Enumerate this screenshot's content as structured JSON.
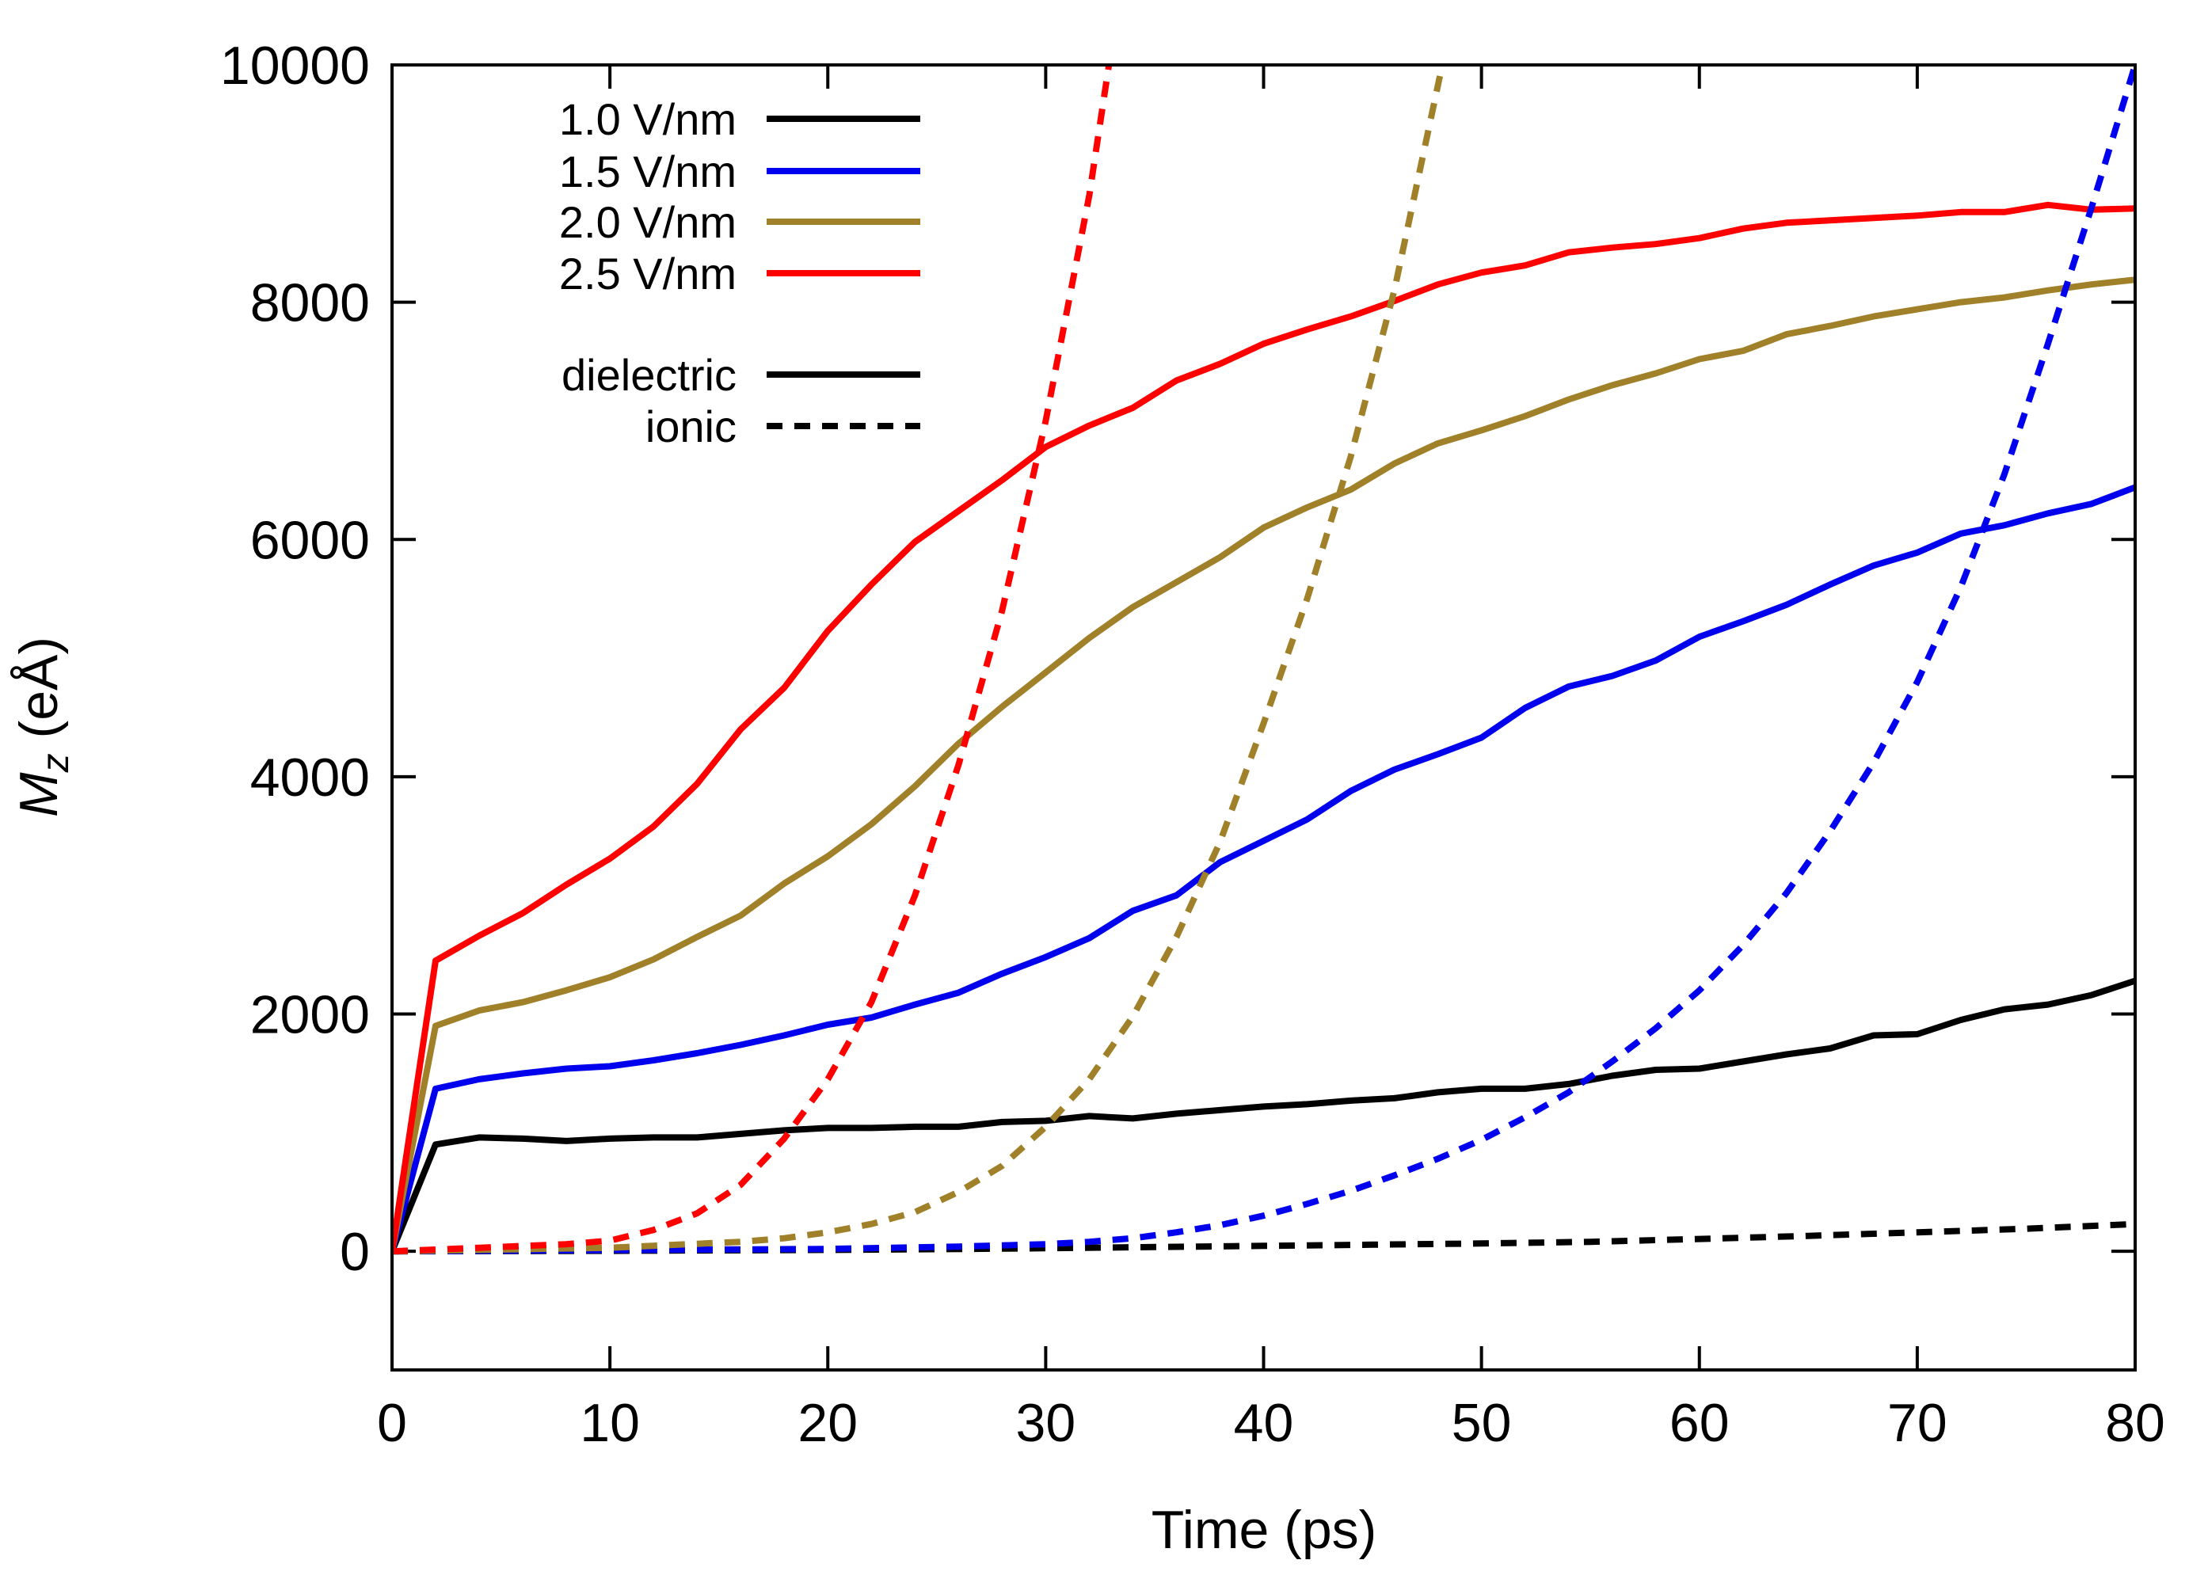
{
  "chart_data": {
    "type": "line",
    "xlabel": "Time (ps)",
    "ylabel": {
      "main": "M",
      "sub": "z",
      "unit": " (eÅ)"
    },
    "xlim": [
      0,
      80
    ],
    "ylim": [
      -1000,
      10000
    ],
    "xticks": [
      0,
      10,
      20,
      30,
      40,
      50,
      60,
      70,
      80
    ],
    "yticks": [
      0,
      2000,
      4000,
      6000,
      8000,
      10000
    ],
    "legend_position": "top-left",
    "legend": {
      "fields": [
        "1.0 V/nm",
        "1.5 V/nm",
        "2.0 V/nm",
        "2.5 V/nm"
      ],
      "styles": [
        "dielectric",
        "ionic"
      ]
    },
    "series": [
      {
        "name": "1.0 V/nm dielectric",
        "field": "1.0 V/nm",
        "kind": "dielectric",
        "color": "#000000",
        "x": [
          0,
          2,
          4,
          6,
          8,
          10,
          12,
          14,
          16,
          18,
          20,
          22,
          24,
          26,
          28,
          30,
          32,
          34,
          36,
          38,
          40,
          42,
          44,
          46,
          48,
          50,
          52,
          54,
          56,
          58,
          60,
          62,
          64,
          66,
          68,
          70,
          72,
          74,
          76,
          78,
          80
        ],
        "y": [
          0,
          900,
          960,
          950,
          930,
          950,
          960,
          960,
          990,
          1020,
          1040,
          1040,
          1050,
          1050,
          1090,
          1100,
          1140,
          1120,
          1160,
          1190,
          1220,
          1240,
          1270,
          1290,
          1340,
          1370,
          1370,
          1410,
          1480,
          1530,
          1540,
          1600,
          1660,
          1710,
          1820,
          1830,
          1950,
          2040,
          2080,
          2160,
          2280
        ]
      },
      {
        "name": "1.5 V/nm dielectric",
        "field": "1.5 V/nm",
        "kind": "dielectric",
        "color": "#0000ee",
        "x": [
          0,
          2,
          4,
          6,
          8,
          10,
          12,
          14,
          16,
          18,
          20,
          22,
          24,
          26,
          28,
          30,
          32,
          34,
          36,
          38,
          40,
          42,
          44,
          46,
          48,
          50,
          52,
          54,
          56,
          58,
          60,
          62,
          64,
          66,
          68,
          70,
          72,
          74,
          76,
          78,
          80
        ],
        "y": [
          0,
          1370,
          1450,
          1500,
          1540,
          1560,
          1610,
          1670,
          1740,
          1820,
          1910,
          1970,
          2080,
          2180,
          2340,
          2480,
          2640,
          2870,
          3000,
          3280,
          3460,
          3640,
          3880,
          4060,
          4190,
          4330,
          4580,
          4760,
          4850,
          4980,
          5180,
          5310,
          5450,
          5620,
          5780,
          5890,
          6050,
          6120,
          6220,
          6300,
          6440
        ]
      },
      {
        "name": "2.0 V/nm dielectric",
        "field": "2.0 V/nm",
        "kind": "dielectric",
        "color": "#a08028",
        "x": [
          0,
          2,
          4,
          6,
          8,
          10,
          12,
          14,
          16,
          18,
          20,
          22,
          24,
          26,
          28,
          30,
          32,
          34,
          36,
          38,
          40,
          42,
          44,
          46,
          48,
          50,
          52,
          54,
          56,
          58,
          60,
          62,
          64,
          66,
          68,
          70,
          72,
          74,
          76,
          78,
          80
        ],
        "y": [
          0,
          1900,
          2030,
          2100,
          2200,
          2310,
          2460,
          2650,
          2830,
          3100,
          3330,
          3600,
          3920,
          4280,
          4590,
          4880,
          5170,
          5430,
          5640,
          5850,
          6100,
          6270,
          6420,
          6640,
          6810,
          6920,
          7040,
          7180,
          7300,
          7400,
          7520,
          7590,
          7730,
          7800,
          7880,
          7940,
          8000,
          8040,
          8100,
          8150,
          8190
        ]
      },
      {
        "name": "2.5 V/nm dielectric",
        "field": "2.5 V/nm",
        "kind": "dielectric",
        "color": "#ff0000",
        "x": [
          0,
          2,
          4,
          6,
          8,
          10,
          12,
          14,
          16,
          18,
          20,
          22,
          24,
          26,
          28,
          30,
          32,
          34,
          36,
          38,
          40,
          42,
          44,
          46,
          48,
          50,
          52,
          54,
          56,
          58,
          60,
          62,
          64,
          66,
          68,
          70,
          72,
          74,
          76,
          78,
          80
        ],
        "y": [
          0,
          2450,
          2660,
          2850,
          3090,
          3310,
          3580,
          3940,
          4400,
          4750,
          5230,
          5620,
          5980,
          6240,
          6500,
          6780,
          6960,
          7110,
          7340,
          7480,
          7650,
          7770,
          7880,
          8010,
          8150,
          8250,
          8310,
          8420,
          8460,
          8490,
          8540,
          8620,
          8670,
          8690,
          8710,
          8730,
          8760,
          8760,
          8820,
          8780,
          8790
        ]
      },
      {
        "name": "1.0 V/nm ionic",
        "field": "1.0 V/nm",
        "kind": "ionic",
        "color": "#000000",
        "x": [
          0,
          5,
          10,
          15,
          20,
          25,
          30,
          35,
          40,
          45,
          50,
          55,
          60,
          65,
          70,
          75,
          80
        ],
        "y": [
          0,
          2,
          4,
          8,
          12,
          18,
          26,
          36,
          46,
          56,
          66,
          80,
          104,
          130,
          160,
          190,
          230
        ]
      },
      {
        "name": "1.5 V/nm ionic",
        "field": "1.5 V/nm",
        "kind": "ionic",
        "color": "#0000ee",
        "x": [
          0,
          10,
          20,
          26,
          30,
          32,
          34,
          36,
          38,
          40,
          42,
          44,
          46,
          48,
          50,
          52,
          54,
          56,
          58,
          60,
          62,
          64,
          66,
          68,
          70,
          72,
          74,
          76,
          78,
          80
        ],
        "y": [
          0,
          10,
          20,
          40,
          60,
          80,
          110,
          160,
          220,
          300,
          400,
          510,
          640,
          780,
          940,
          1130,
          1340,
          1600,
          1880,
          2200,
          2580,
          3020,
          3540,
          4120,
          4800,
          5600,
          6550,
          7650,
          8800,
          10000
        ]
      },
      {
        "name": "2.0 V/nm ionic",
        "field": "2.0 V/nm",
        "kind": "ionic",
        "color": "#a08028",
        "x": [
          0,
          10,
          16,
          18,
          20,
          22,
          24,
          26,
          28,
          30,
          32,
          34,
          36,
          38,
          40,
          42,
          44,
          46,
          48.2
        ],
        "y": [
          0,
          30,
          80,
          110,
          160,
          230,
          330,
          500,
          720,
          1050,
          1450,
          1980,
          2650,
          3450,
          4450,
          5500,
          6700,
          8100,
          10000
        ]
      },
      {
        "name": "2.5 V/nm ionic",
        "field": "2.5 V/nm",
        "kind": "ionic",
        "color": "#ff0000",
        "x": [
          0,
          4,
          8,
          10,
          12,
          14,
          16,
          18,
          20,
          22,
          24,
          26,
          28,
          30,
          32,
          32.9
        ],
        "y": [
          0,
          30,
          60,
          90,
          180,
          320,
          560,
          950,
          1450,
          2100,
          3000,
          4100,
          5400,
          7000,
          8900,
          10000
        ]
      }
    ]
  }
}
